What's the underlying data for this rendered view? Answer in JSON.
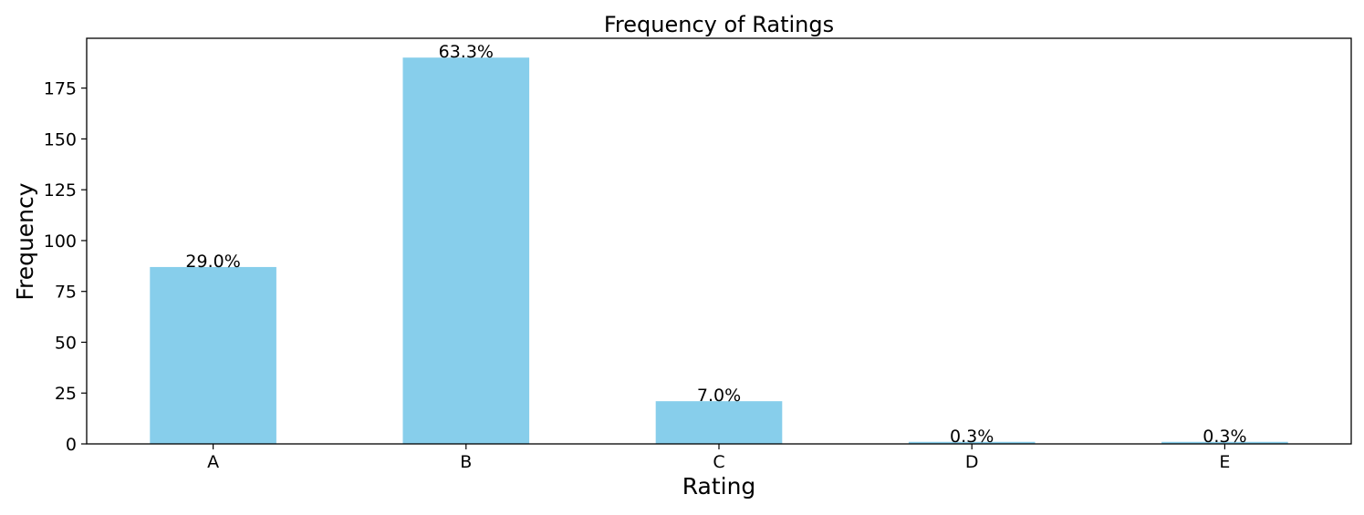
{
  "chart_data": {
    "type": "bar",
    "title": "Frequency of Ratings",
    "xlabel": "Rating",
    "ylabel": "Frequency",
    "categories": [
      "A",
      "B",
      "C",
      "D",
      "E"
    ],
    "values": [
      87,
      190,
      21,
      1,
      1
    ],
    "data_labels": [
      "29.0%",
      "63.3%",
      "7.0%",
      "0.3%",
      "0.3%"
    ],
    "ylim": [
      0,
      199.5
    ],
    "yticks": [
      0,
      25,
      50,
      75,
      100,
      125,
      150,
      175
    ],
    "grid": false,
    "legend": "none",
    "bar_color": "#87ceeb",
    "axis_color": "#000000"
  }
}
